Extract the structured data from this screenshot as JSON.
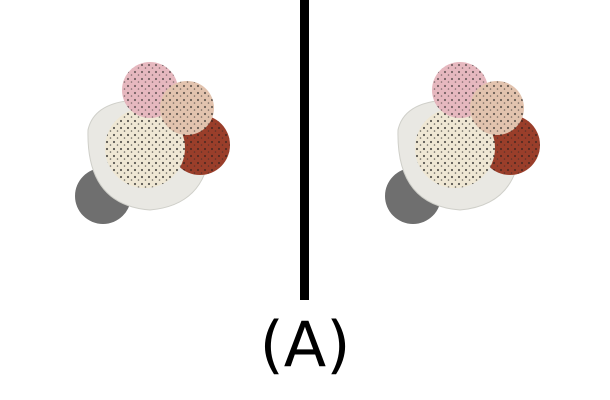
{
  "caption": "(A)",
  "colors": {
    "background": "#ffffff",
    "divider": "#000000",
    "bowl": "#e9e8e3",
    "base": "#6f6f6f",
    "scoop_vanilla": "#efe7d4",
    "scoop_strawberry": "#e6b8bf",
    "scoop_peach": "#e2c3ae",
    "scoop_chocolate": "#9a3e2a"
  }
}
